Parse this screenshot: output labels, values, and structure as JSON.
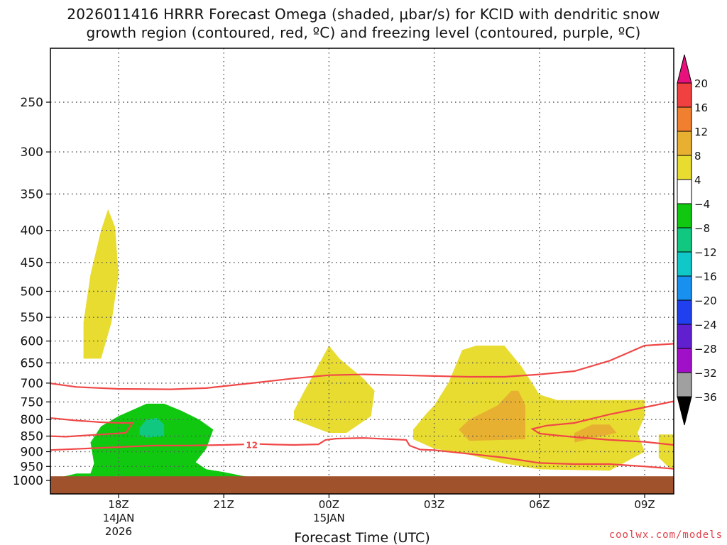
{
  "title_line1": "2026011416 HRRR Forecast Omega (shaded, μbar/s) for KCID with dendritic snow",
  "title_line2": "growth region (contoured, red, ºC) and freezing level (contoured, purple, ºC)",
  "credit": "coolwx.com/models",
  "chart_data": {
    "type": "contour-crosssection",
    "title": "2026011416 HRRR Forecast Omega (shaded, μbar/s) for KCID with dendritic snow growth region (contoured, red, ºC) and freezing level (contoured, purple, ºC)",
    "xlabel": "Forecast Time (UTC)",
    "ylabel": "",
    "x_ticks": [
      {
        "hour": 18,
        "label": "18Z",
        "sub1": "14JAN",
        "sub2": "2026"
      },
      {
        "hour": 21,
        "label": "21Z",
        "sub1": "",
        "sub2": ""
      },
      {
        "hour": 24,
        "label": "00Z",
        "sub1": "15JAN",
        "sub2": ""
      },
      {
        "hour": 27,
        "label": "03Z",
        "sub1": "",
        "sub2": ""
      },
      {
        "hour": 30,
        "label": "06Z",
        "sub1": "",
        "sub2": ""
      },
      {
        "hour": 33,
        "label": "09Z",
        "sub1": "",
        "sub2": ""
      }
    ],
    "xlim": [
      16,
      34
    ],
    "y_ticks": [
      250,
      300,
      350,
      400,
      450,
      500,
      550,
      600,
      650,
      700,
      750,
      800,
      850,
      900,
      950,
      1000
    ],
    "ylim_hPa": [
      200,
      1030
    ],
    "y_scale": "log",
    "grid": true,
    "colorbar": {
      "labels": [
        20,
        16,
        12,
        8,
        4,
        -4,
        -8,
        -12,
        -16,
        -20,
        -24,
        -28,
        -32,
        -36
      ],
      "colors": [
        "#e8e8e8",
        "#f04040",
        "#f08030",
        "#e8b030",
        "#e8dc30",
        "#ffffff",
        "#10c810",
        "#10c880",
        "#10c8c8",
        "#1890f0",
        "#2040f0",
        "#6020d0",
        "#a010c8",
        "#a0a0a0",
        "#000000"
      ],
      "top_color": "#e8107c",
      "bottom_color": "#000000"
    },
    "omega_regions": [
      {
        "level": 4,
        "color": "#e8dc30",
        "points": [
          [
            17.0,
            560
          ],
          [
            17.2,
            470
          ],
          [
            17.5,
            400
          ],
          [
            17.7,
            370
          ],
          [
            17.9,
            395
          ],
          [
            18.0,
            470
          ],
          [
            17.8,
            560
          ],
          [
            17.5,
            640
          ],
          [
            17.0,
            640
          ]
        ]
      },
      {
        "level": 4,
        "color": "#e8dc30",
        "points": [
          [
            23.0,
            775
          ],
          [
            23.3,
            720
          ],
          [
            23.8,
            640
          ],
          [
            24.0,
            610
          ],
          [
            24.3,
            640
          ],
          [
            25.0,
            690
          ],
          [
            25.3,
            720
          ],
          [
            25.2,
            790
          ],
          [
            24.5,
            840
          ],
          [
            24.0,
            840
          ],
          [
            23.5,
            820
          ],
          [
            23.0,
            800
          ]
        ]
      },
      {
        "level": 4,
        "color": "#e8dc30",
        "points": [
          [
            26.4,
            830
          ],
          [
            26.8,
            780
          ],
          [
            27.0,
            760
          ],
          [
            27.4,
            700
          ],
          [
            27.8,
            620
          ],
          [
            28.2,
            610
          ],
          [
            29.0,
            610
          ],
          [
            29.5,
            660
          ],
          [
            30.0,
            730
          ],
          [
            30.5,
            745
          ],
          [
            32.0,
            745
          ],
          [
            33.0,
            745
          ],
          [
            33.0,
            790
          ],
          [
            32.8,
            840
          ],
          [
            33.0,
            900
          ],
          [
            32.0,
            965
          ],
          [
            30.0,
            960
          ],
          [
            29.0,
            940
          ],
          [
            28.0,
            910
          ],
          [
            27.0,
            890
          ],
          [
            26.4,
            860
          ]
        ]
      },
      {
        "level": 4,
        "color": "#e8dc30",
        "points": [
          [
            33.4,
            845
          ],
          [
            34.0,
            845
          ],
          [
            34.0,
            960
          ],
          [
            33.7,
            955
          ],
          [
            33.4,
            920
          ]
        ]
      },
      {
        "level": 8,
        "color": "#e8b030",
        "points": [
          [
            27.7,
            830
          ],
          [
            28.0,
            800
          ],
          [
            28.8,
            760
          ],
          [
            29.2,
            720
          ],
          [
            29.4,
            720
          ],
          [
            29.6,
            760
          ],
          [
            29.6,
            860
          ],
          [
            28.0,
            865
          ]
        ]
      },
      {
        "level": 8,
        "color": "#e8b030",
        "points": [
          [
            31.0,
            840
          ],
          [
            31.5,
            815
          ],
          [
            32.0,
            815
          ],
          [
            32.2,
            840
          ],
          [
            31.0,
            870
          ]
        ]
      },
      {
        "level": -4,
        "color": "#10c810",
        "points": [
          [
            16.3,
            990
          ],
          [
            16.8,
            975
          ],
          [
            17.2,
            975
          ],
          [
            17.3,
            940
          ],
          [
            17.2,
            870
          ],
          [
            17.5,
            820
          ],
          [
            18.0,
            790
          ],
          [
            18.8,
            755
          ],
          [
            19.3,
            755
          ],
          [
            19.8,
            775
          ],
          [
            20.3,
            800
          ],
          [
            20.7,
            830
          ],
          [
            20.5,
            890
          ],
          [
            20.2,
            935
          ],
          [
            20.5,
            960
          ],
          [
            21.0,
            970
          ],
          [
            21.6,
            985
          ],
          [
            22.5,
            990
          ],
          [
            21.0,
            995
          ],
          [
            17.0,
            995
          ]
        ]
      },
      {
        "level": -8,
        "color": "#10c880",
        "points": [
          [
            18.6,
            825
          ],
          [
            18.8,
            800
          ],
          [
            19.1,
            795
          ],
          [
            19.3,
            815
          ],
          [
            19.3,
            850
          ],
          [
            18.8,
            855
          ],
          [
            18.6,
            845
          ]
        ]
      }
    ],
    "dgz_contours": [
      {
        "label": "",
        "points": [
          [
            16.0,
            700
          ],
          [
            16.8,
            710
          ],
          [
            18.0,
            715
          ],
          [
            19.5,
            716
          ],
          [
            20.5,
            713
          ],
          [
            21.8,
            700
          ],
          [
            23.0,
            688
          ],
          [
            24.0,
            680
          ],
          [
            25.0,
            678
          ],
          [
            26.0,
            680
          ],
          [
            27.0,
            682
          ],
          [
            28.0,
            684
          ],
          [
            29.0,
            684
          ],
          [
            30.0,
            678
          ],
          [
            31.0,
            670
          ],
          [
            32.0,
            645
          ],
          [
            33.0,
            610
          ],
          [
            34.0,
            605
          ]
        ]
      },
      {
        "label": "",
        "points": [
          [
            16.0,
            795
          ],
          [
            16.8,
            803
          ],
          [
            17.5,
            808
          ],
          [
            18.0,
            810
          ],
          [
            18.4,
            810
          ],
          [
            18.2,
            840
          ],
          [
            17.5,
            845
          ],
          [
            16.5,
            852
          ],
          [
            16.0,
            850
          ]
        ]
      },
      {
        "label": "12",
        "points": [
          [
            16.0,
            895
          ],
          [
            17.0,
            890
          ],
          [
            18.0,
            885
          ],
          [
            19.0,
            880
          ],
          [
            20.0,
            880
          ],
          [
            21.0,
            878
          ],
          [
            22.0,
            875
          ],
          [
            22.5,
            877
          ],
          [
            23.0,
            878
          ],
          [
            23.7,
            876
          ],
          [
            23.9,
            862
          ],
          [
            24.2,
            858
          ],
          [
            25.0,
            856
          ],
          [
            25.8,
            860
          ],
          [
            26.2,
            862
          ],
          [
            26.3,
            880
          ],
          [
            26.6,
            893
          ],
          [
            27.0,
            895
          ],
          [
            29.0,
            920
          ],
          [
            30.0,
            938
          ],
          [
            31.0,
            942
          ],
          [
            32.0,
            942
          ],
          [
            33.0,
            950
          ],
          [
            34.0,
            960
          ]
        ]
      },
      {
        "label": "",
        "points": [
          [
            34.0,
            745
          ],
          [
            33.0,
            765
          ],
          [
            32.0,
            785
          ],
          [
            31.0,
            810
          ],
          [
            30.2,
            818
          ],
          [
            29.8,
            828
          ],
          [
            30.0,
            842
          ],
          [
            30.5,
            848
          ],
          [
            31.0,
            853
          ],
          [
            32.0,
            862
          ],
          [
            33.0,
            868
          ],
          [
            34.0,
            880
          ]
        ]
      }
    ],
    "ground_level_hPa": 985
  }
}
